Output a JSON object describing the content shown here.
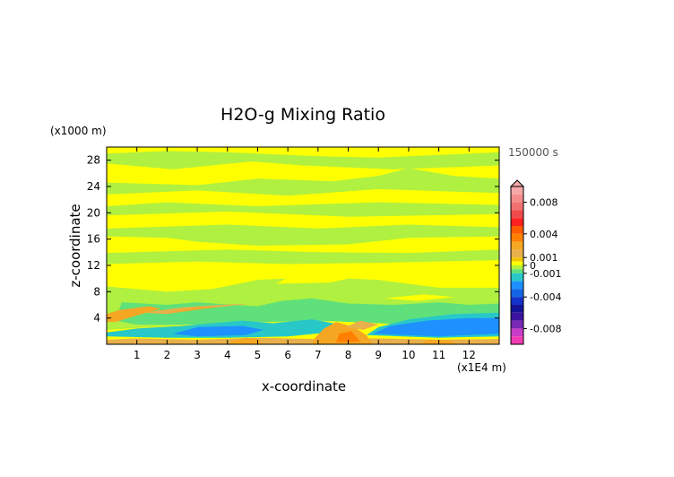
{
  "chart_data": {
    "type": "heatmap",
    "title": "H2O-g Mixing Ratio",
    "time_label": "150000 s",
    "xlabel": "x-coordinate",
    "ylabel": "z-coordinate",
    "x_unit": "(x1E4 m)",
    "y_unit": "(x1000 m)",
    "xlim": [
      0,
      13
    ],
    "ylim": [
      0,
      30
    ],
    "x_ticks": [
      1,
      2,
      3,
      4,
      5,
      6,
      7,
      8,
      9,
      10,
      11,
      12
    ],
    "y_ticks": [
      4,
      8,
      12,
      16,
      20,
      24,
      28
    ],
    "colorbar": {
      "labels": [
        "0.008",
        "0.004",
        "0.001",
        "0",
        "-0.001",
        "-0.004",
        "-0.008"
      ],
      "levels": [
        {
          "low": 0.009,
          "high": 0.01,
          "color": "#f6a8a8"
        },
        {
          "low": 0.008,
          "high": 0.009,
          "color": "#f58b8b"
        },
        {
          "low": 0.007,
          "high": 0.008,
          "color": "#f07070"
        },
        {
          "low": 0.006,
          "high": 0.007,
          "color": "#ee4b4b"
        },
        {
          "low": 0.005,
          "high": 0.006,
          "color": "#ff2020"
        },
        {
          "low": 0.004,
          "high": 0.005,
          "color": "#ff5a00"
        },
        {
          "low": 0.003,
          "high": 0.004,
          "color": "#ff8000"
        },
        {
          "low": 0.002,
          "high": 0.003,
          "color": "#f5a623"
        },
        {
          "low": 0.001,
          "high": 0.002,
          "color": "#e8b04a"
        },
        {
          "low": 0.0005,
          "high": 0.001,
          "color": "#f2c400"
        },
        {
          "low": 0.0,
          "high": 0.0005,
          "color": "#ffff00"
        },
        {
          "low": -0.0005,
          "high": 0.0,
          "color": "#b0f040"
        },
        {
          "low": -0.001,
          "high": -0.0005,
          "color": "#5fe07a"
        },
        {
          "low": -0.002,
          "high": -0.001,
          "color": "#28c8c8"
        },
        {
          "low": -0.003,
          "high": -0.002,
          "color": "#1e90ff"
        },
        {
          "low": -0.004,
          "high": -0.003,
          "color": "#1464e6"
        },
        {
          "low": -0.005,
          "high": -0.004,
          "color": "#1432c8"
        },
        {
          "low": -0.006,
          "high": -0.005,
          "color": "#141496"
        },
        {
          "low": -0.007,
          "high": -0.006,
          "color": "#3c14a0"
        },
        {
          "low": -0.008,
          "high": -0.007,
          "color": "#7828b4"
        },
        {
          "low": -0.009,
          "high": -0.008,
          "color": "#c83cc8"
        },
        {
          "low": -0.01,
          "high": -0.009,
          "color": "#f03cb4"
        }
      ]
    },
    "background_value": 0.0003,
    "regions": [
      {
        "value": -0.0003,
        "points": [
          [
            0,
            27.5
          ],
          [
            2.2,
            26.6
          ],
          [
            4.8,
            27.8
          ],
          [
            6.5,
            27.2
          ],
          [
            9.5,
            26.6
          ],
          [
            13,
            27.2
          ],
          [
            13,
            29.2
          ],
          [
            11,
            28.8
          ],
          [
            9,
            28.4
          ],
          [
            7,
            28.6
          ],
          [
            4,
            29.2
          ],
          [
            2,
            29.4
          ],
          [
            0,
            29.0
          ]
        ]
      },
      {
        "value": -0.0003,
        "points": [
          [
            0,
            22.8
          ],
          [
            3,
            23.4
          ],
          [
            6,
            22.6
          ],
          [
            9,
            23.6
          ],
          [
            13,
            23.0
          ],
          [
            13,
            25.2
          ],
          [
            11.5,
            25.6
          ],
          [
            10.0,
            26.8
          ],
          [
            9.0,
            25.6
          ],
          [
            7.5,
            24.8
          ],
          [
            5,
            25.2
          ],
          [
            3,
            24.2
          ],
          [
            0,
            24.6
          ]
        ]
      },
      {
        "value": -0.0003,
        "points": [
          [
            0,
            19.6
          ],
          [
            4,
            20.2
          ],
          [
            8,
            19.4
          ],
          [
            13,
            19.8
          ],
          [
            13,
            21.2
          ],
          [
            9,
            21.6
          ],
          [
            5,
            21.0
          ],
          [
            2,
            21.6
          ],
          [
            0,
            21.0
          ]
        ]
      },
      {
        "value": -0.0003,
        "points": [
          [
            0,
            16.4
          ],
          [
            2,
            16.2
          ],
          [
            3,
            15.6
          ],
          [
            5,
            15.0
          ],
          [
            8,
            15.2
          ],
          [
            10,
            16.2
          ],
          [
            13,
            16.4
          ],
          [
            13,
            17.8
          ],
          [
            10,
            18.2
          ],
          [
            7,
            17.6
          ],
          [
            4,
            18.2
          ],
          [
            0,
            17.6
          ]
        ]
      },
      {
        "value": -0.0003,
        "points": [
          [
            0,
            12.2
          ],
          [
            3,
            12.6
          ],
          [
            6,
            12.2
          ],
          [
            9,
            12.4
          ],
          [
            13,
            12.8
          ],
          [
            13,
            14.4
          ],
          [
            10,
            13.9
          ],
          [
            7,
            14.0
          ],
          [
            4,
            14.4
          ],
          [
            0,
            13.9
          ]
        ]
      },
      {
        "value": -0.0003,
        "points": [
          [
            0,
            2.2
          ],
          [
            3,
            3.0
          ],
          [
            6,
            3.4
          ],
          [
            9,
            3.6
          ],
          [
            13,
            3.8
          ],
          [
            13,
            8.6
          ],
          [
            11,
            8.6
          ],
          [
            9,
            9.8
          ],
          [
            7,
            10.2
          ],
          [
            5,
            9.8
          ],
          [
            3.5,
            8.4
          ],
          [
            2,
            8.0
          ],
          [
            0,
            8.8
          ]
        ]
      },
      {
        "value": 0.0003,
        "points": [
          [
            5.6,
            9.2
          ],
          [
            6.2,
            10.6
          ],
          [
            7.5,
            11.0
          ],
          [
            8.2,
            10.2
          ],
          [
            7.4,
            9.4
          ]
        ]
      },
      {
        "value": 0.0003,
        "points": [
          [
            9.2,
            7.0
          ],
          [
            10.5,
            7.6
          ],
          [
            11.5,
            7.2
          ],
          [
            10.3,
            6.6
          ]
        ]
      },
      {
        "value": -0.0008,
        "points": [
          [
            0.5,
            6.4
          ],
          [
            2,
            6.0
          ],
          [
            3,
            6.4
          ],
          [
            4.2,
            6.0
          ],
          [
            5,
            5.8
          ],
          [
            5.8,
            6.6
          ],
          [
            6.8,
            7.0
          ],
          [
            8,
            6.2
          ],
          [
            9.5,
            6.0
          ],
          [
            11,
            6.4
          ],
          [
            12,
            6.0
          ],
          [
            13,
            6.2
          ],
          [
            13,
            3.0
          ],
          [
            11,
            2.6
          ],
          [
            9,
            3.2
          ],
          [
            7,
            3.6
          ],
          [
            5,
            3.4
          ],
          [
            3,
            3.0
          ],
          [
            1,
            3.0
          ],
          [
            0.3,
            3.6
          ]
        ]
      },
      {
        "value": 0.0015,
        "points": [
          [
            1.2,
            4.8
          ],
          [
            2.5,
            5.6
          ],
          [
            3.8,
            6.0
          ],
          [
            4.8,
            6.2
          ],
          [
            3.2,
            5.4
          ],
          [
            2,
            4.6
          ]
        ]
      },
      {
        "value": 0.0025,
        "points": [
          [
            0.3,
            3.4
          ],
          [
            1.0,
            4.4
          ],
          [
            1.8,
            5.4
          ],
          [
            1.4,
            5.8
          ],
          [
            0.4,
            5.2
          ],
          [
            0,
            4.6
          ],
          [
            0,
            3.4
          ]
        ]
      },
      {
        "value": 0.0025,
        "points": [
          [
            2.0,
            4.8
          ],
          [
            3.0,
            5.6
          ],
          [
            3.8,
            5.8
          ],
          [
            2.6,
            5.0
          ]
        ]
      },
      {
        "value": -0.0015,
        "points": [
          [
            0,
            1.8
          ],
          [
            1,
            2.4
          ],
          [
            2.5,
            2.8
          ],
          [
            3.5,
            3.2
          ],
          [
            4.5,
            3.6
          ],
          [
            5.5,
            3.2
          ],
          [
            6.8,
            3.8
          ],
          [
            7.5,
            3.2
          ],
          [
            7.8,
            2.0
          ],
          [
            6,
            1.2
          ],
          [
            4,
            1.0
          ],
          [
            2,
            1.0
          ],
          [
            0,
            1.2
          ]
        ]
      },
      {
        "value": -0.0028,
        "points": [
          [
            2.2,
            1.6
          ],
          [
            3,
            2.6
          ],
          [
            4.5,
            2.8
          ],
          [
            5.2,
            2.2
          ],
          [
            4.6,
            1.4
          ],
          [
            3,
            1.2
          ]
        ]
      },
      {
        "value": -0.0015,
        "points": [
          [
            8.6,
            1.4
          ],
          [
            9,
            2.6
          ],
          [
            10,
            3.8
          ],
          [
            11.5,
            4.6
          ],
          [
            13,
            4.8
          ],
          [
            13,
            1.2
          ],
          [
            11,
            1.0
          ]
        ]
      },
      {
        "value": -0.0028,
        "points": [
          [
            8.8,
            1.6
          ],
          [
            9.4,
            2.8
          ],
          [
            10.6,
            3.6
          ],
          [
            12,
            4.0
          ],
          [
            13,
            4.0
          ],
          [
            13,
            1.6
          ],
          [
            11,
            1.2
          ]
        ]
      },
      {
        "value": 0.0015,
        "points": [
          [
            0,
            0
          ],
          [
            13,
            0
          ],
          [
            13,
            0.8
          ],
          [
            11,
            0.7
          ],
          [
            9,
            0.9
          ],
          [
            7,
            0.8
          ],
          [
            5,
            1.0
          ],
          [
            3,
            0.7
          ],
          [
            1,
            0.9
          ],
          [
            0,
            0.7
          ]
        ]
      },
      {
        "value": 0.0025,
        "points": [
          [
            4,
            0
          ],
          [
            5.2,
            0
          ],
          [
            5,
            0.8
          ],
          [
            4.6,
            1.0
          ],
          [
            4.2,
            0.6
          ]
        ]
      },
      {
        "value": 0.0025,
        "points": [
          [
            6.8,
            0
          ],
          [
            8.8,
            0
          ],
          [
            8.6,
            1.4
          ],
          [
            8.2,
            2.6
          ],
          [
            7.6,
            3.4
          ],
          [
            7.2,
            2.4
          ],
          [
            6.9,
            1.0
          ]
        ]
      },
      {
        "value": 0.0035,
        "points": [
          [
            7.6,
            0.3
          ],
          [
            8.4,
            0.4
          ],
          [
            8.1,
            2.0
          ],
          [
            7.7,
            1.6
          ]
        ]
      },
      {
        "value": 0.0015,
        "points": [
          [
            7.9,
            2.6
          ],
          [
            8.4,
            3.6
          ],
          [
            9.0,
            3.0
          ],
          [
            8.5,
            2.2
          ]
        ]
      },
      {
        "value": 0.0025,
        "points": [
          [
            10.4,
            0
          ],
          [
            11.6,
            0
          ],
          [
            11.4,
            0.6
          ],
          [
            10.6,
            0.7
          ]
        ]
      }
    ]
  }
}
